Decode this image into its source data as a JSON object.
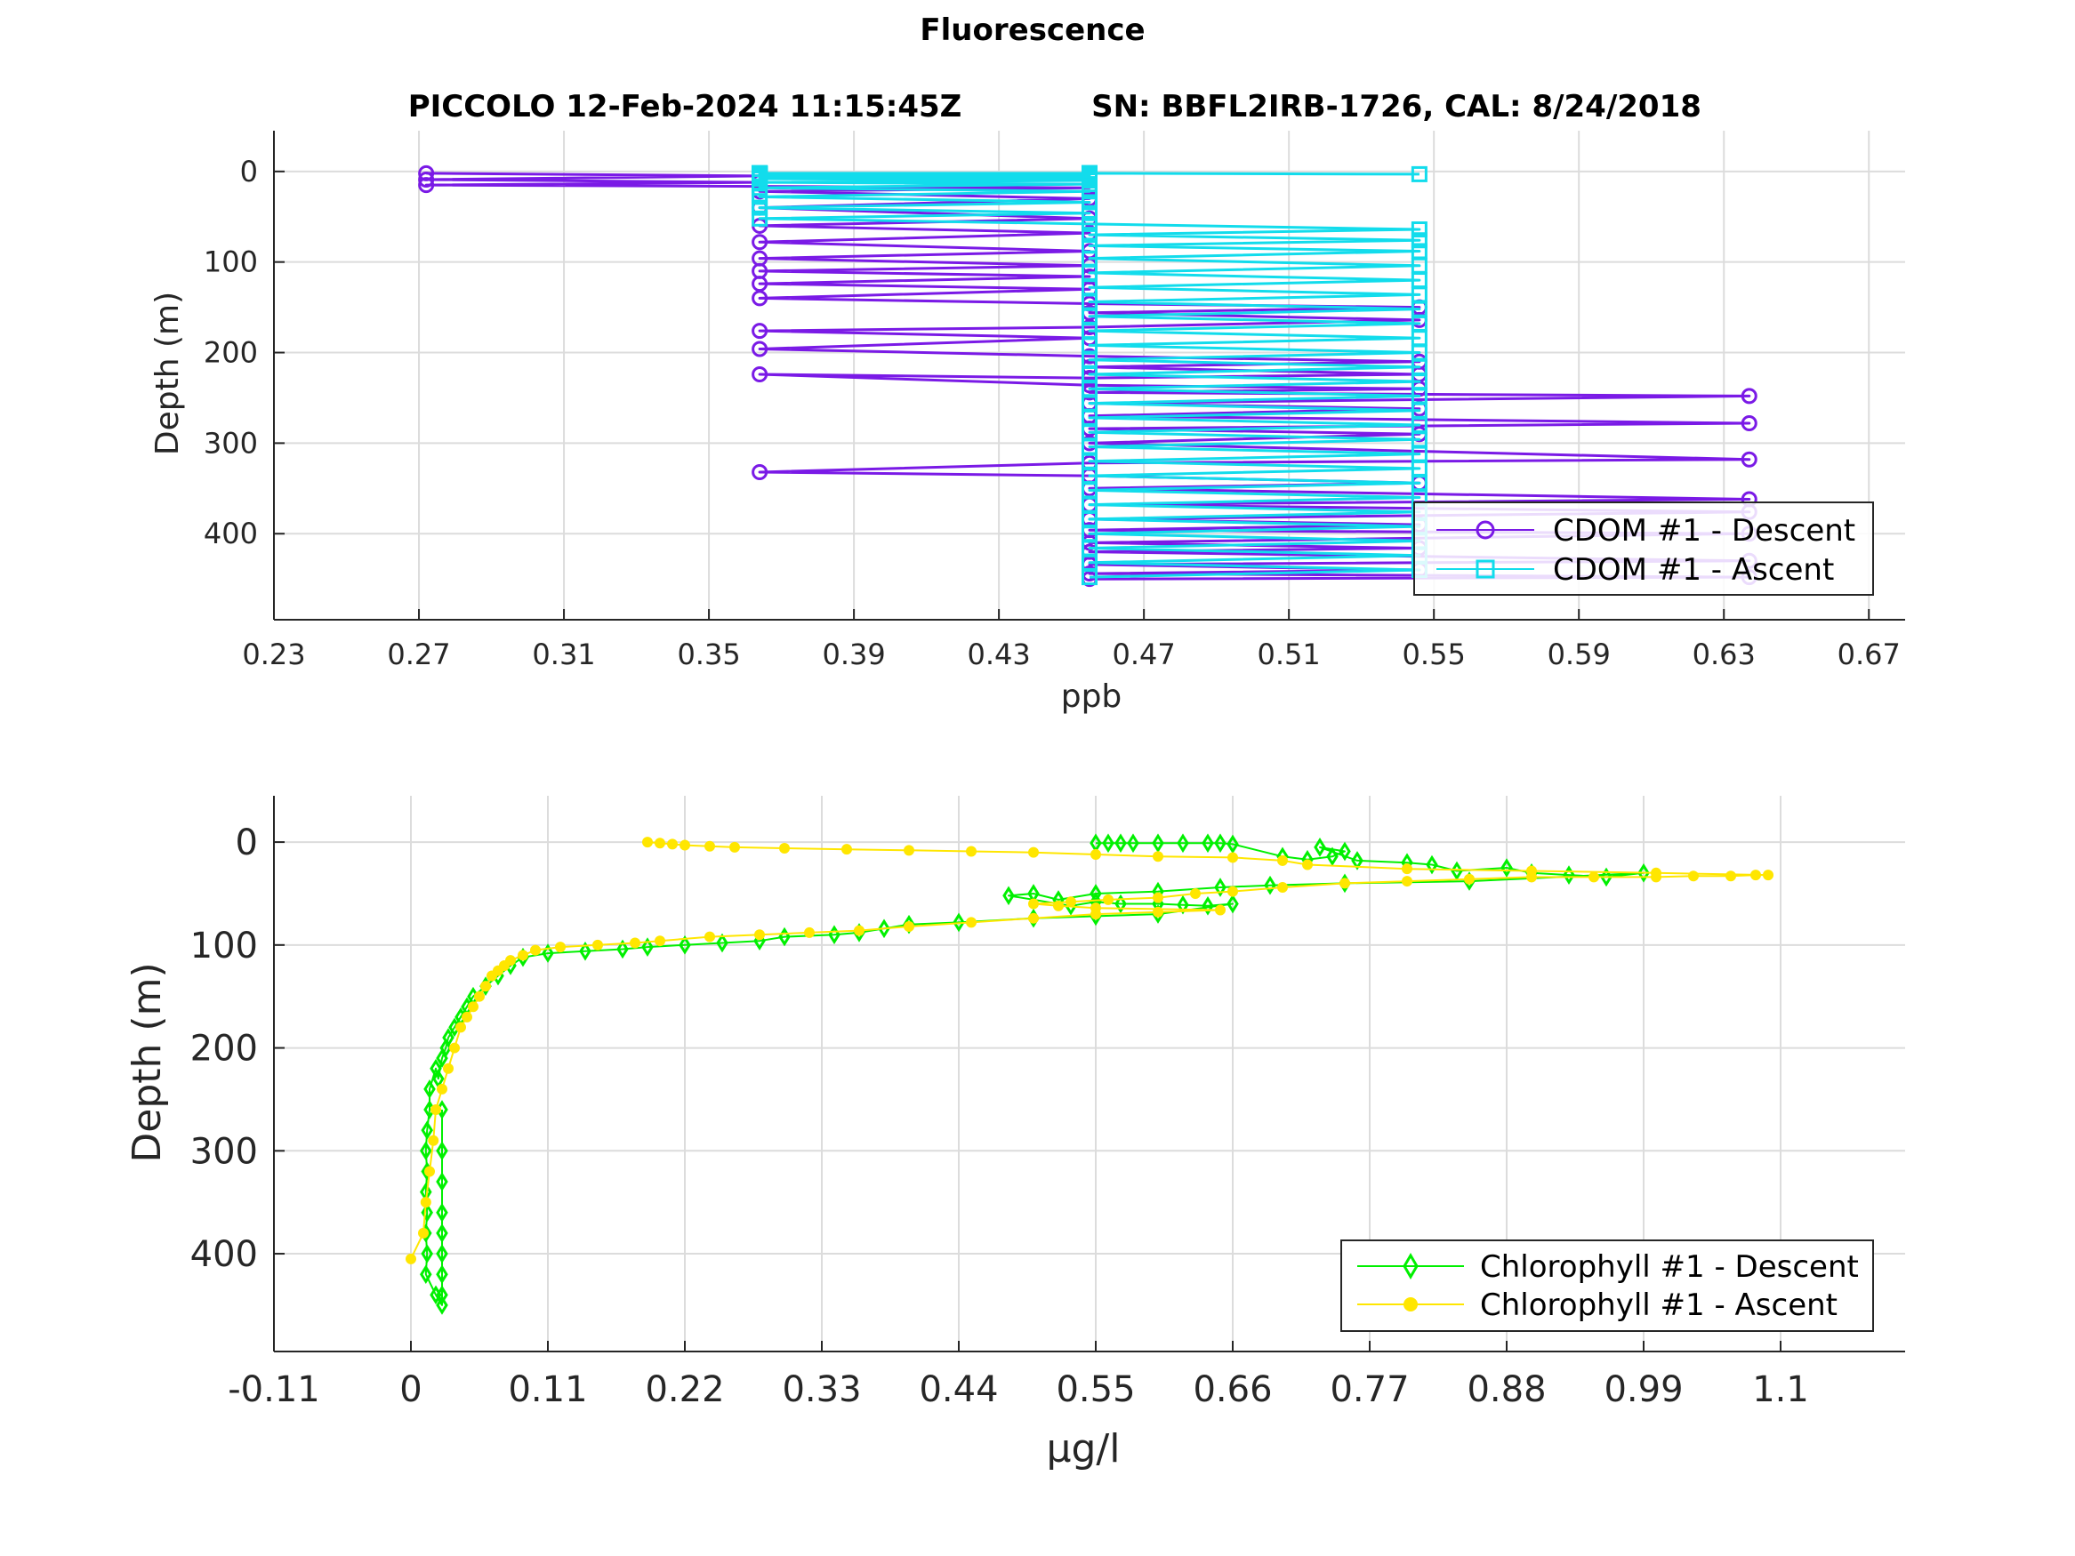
{
  "figure": {
    "title": "Fluorescence",
    "subtitle_left": "PICCOLO 12-Feb-2024 11:15:45Z",
    "subtitle_right": "SN: BBFL2IRB-1726, CAL: 8/24/2018"
  },
  "chart_data": [
    {
      "type": "line",
      "xlabel": "ppb",
      "ylabel": "Depth (m)",
      "xlim": [
        0.23,
        0.68
      ],
      "ylim": [
        -45,
        495
      ],
      "y_reversed": true,
      "grid": true,
      "legend_position": "bottom-right",
      "xticks": [
        "0.23",
        "0.27",
        "0.31",
        "0.35",
        "0.39",
        "0.43",
        "0.47",
        "0.51",
        "0.55",
        "0.59",
        "0.63",
        "0.67"
      ],
      "yticks": [
        "0",
        "100",
        "200",
        "300",
        "400"
      ],
      "series": [
        {
          "name": "CDOM #1 - Descent",
          "color": "#7a1ae6",
          "marker": "circle",
          "x": [
            0.272,
            0.364,
            0.272,
            0.364,
            0.272,
            0.455,
            0.364,
            0.455,
            0.364,
            0.455,
            0.364,
            0.455,
            0.364,
            0.455,
            0.364,
            0.455,
            0.364,
            0.455,
            0.364,
            0.455,
            0.364,
            0.455,
            0.546,
            0.455,
            0.546,
            0.455,
            0.364,
            0.455,
            0.364,
            0.455,
            0.546,
            0.455,
            0.546,
            0.455,
            0.364,
            0.455,
            0.546,
            0.455,
            0.637,
            0.455,
            0.546,
            0.455,
            0.637,
            0.455,
            0.546,
            0.455,
            0.637,
            0.455,
            0.364,
            0.455,
            0.546,
            0.455,
            0.637,
            0.455,
            0.637,
            0.455,
            0.546,
            0.455,
            0.637,
            0.455,
            0.546,
            0.455,
            0.637,
            0.455,
            0.546,
            0.455,
            0.637,
            0.455
          ],
          "y": [
            2,
            5,
            9,
            12,
            15,
            18,
            22,
            30,
            40,
            52,
            60,
            68,
            78,
            88,
            96,
            104,
            110,
            116,
            124,
            130,
            140,
            146,
            150,
            156,
            164,
            172,
            176,
            184,
            196,
            204,
            210,
            216,
            224,
            228,
            224,
            236,
            240,
            244,
            248,
            256,
            262,
            270,
            278,
            284,
            290,
            300,
            318,
            322,
            332,
            336,
            344,
            350,
            362,
            368,
            376,
            384,
            390,
            396,
            400,
            410,
            416,
            420,
            430,
            434,
            440,
            444,
            448,
            450
          ]
        },
        {
          "name": "CDOM #1 - Ascent",
          "color": "#12dcec",
          "marker": "square",
          "x": [
            0.455,
            0.546,
            0.455,
            0.546,
            0.455,
            0.546,
            0.455,
            0.546,
            0.455,
            0.546,
            0.455,
            0.546,
            0.455,
            0.546,
            0.455,
            0.546,
            0.455,
            0.546,
            0.455,
            0.546,
            0.455,
            0.546,
            0.455,
            0.546,
            0.455,
            0.546,
            0.455,
            0.546,
            0.455,
            0.546,
            0.455,
            0.546,
            0.455,
            0.546,
            0.455,
            0.546,
            0.455,
            0.546,
            0.455,
            0.546,
            0.455,
            0.546,
            0.455,
            0.546,
            0.455,
            0.546,
            0.455,
            0.546,
            0.455,
            0.546,
            0.455,
            0.364,
            0.455,
            0.364,
            0.455,
            0.364,
            0.455,
            0.364,
            0.455,
            0.364,
            0.455,
            0.364,
            0.455,
            0.364,
            0.455,
            0.364,
            0.455,
            0.364,
            0.455,
            0.364,
            0.455,
            0.364,
            0.455,
            0.364,
            0.455,
            0.364,
            0.455,
            0.364,
            0.455,
            0.364,
            0.455,
            0.364,
            0.455,
            0.364,
            0.455,
            0.546
          ],
          "y": [
            448,
            440,
            432,
            424,
            416,
            408,
            400,
            392,
            384,
            376,
            368,
            360,
            352,
            344,
            336,
            328,
            320,
            312,
            304,
            296,
            288,
            280,
            272,
            264,
            256,
            248,
            240,
            232,
            224,
            216,
            208,
            200,
            192,
            184,
            176,
            168,
            160,
            152,
            144,
            136,
            128,
            120,
            112,
            104,
            96,
            88,
            82,
            76,
            70,
            64,
            58,
            52,
            46,
            40,
            34,
            28,
            22,
            18,
            14,
            12,
            10,
            8,
            7,
            6,
            6,
            5,
            5,
            4,
            4,
            3,
            3,
            3,
            3,
            3,
            2,
            2,
            2,
            2,
            2,
            2,
            2,
            2,
            2,
            2,
            2,
            3
          ]
        }
      ]
    },
    {
      "type": "line",
      "xlabel": "μg/l",
      "ylabel": "Depth (m)",
      "xlim": [
        -0.11,
        1.2
      ],
      "ylim": [
        -45,
        495
      ],
      "y_reversed": true,
      "grid": true,
      "legend_position": "bottom-right",
      "xticks": [
        "-0.11",
        "0",
        "0.11",
        "0.22",
        "0.33",
        "0.44",
        "0.55",
        "0.66",
        "0.77",
        "0.88",
        "0.99",
        "1.1"
      ],
      "yticks": [
        "0",
        "100",
        "200",
        "300",
        "400"
      ],
      "series": [
        {
          "name": "Chlorophyll #1 - Descent",
          "color": "#00f000",
          "marker": "diamond",
          "x": [
            0.55,
            0.56,
            0.57,
            0.58,
            0.6,
            0.62,
            0.64,
            0.65,
            0.66,
            0.7,
            0.72,
            0.74,
            0.75,
            0.73,
            0.76,
            0.8,
            0.82,
            0.84,
            0.88,
            0.9,
            0.93,
            0.96,
            0.99,
            0.85,
            0.75,
            0.69,
            0.65,
            0.6,
            0.55,
            0.52,
            0.5,
            0.48,
            0.53,
            0.55,
            0.57,
            0.6,
            0.62,
            0.64,
            0.66,
            0.6,
            0.55,
            0.5,
            0.44,
            0.4,
            0.38,
            0.36,
            0.34,
            0.3,
            0.28,
            0.25,
            0.22,
            0.19,
            0.17,
            0.14,
            0.11,
            0.09,
            0.08,
            0.07,
            0.06,
            0.05,
            0.045,
            0.04,
            0.035,
            0.03,
            0.028,
            0.025,
            0.022,
            0.02,
            0.015,
            0.015,
            0.013,
            0.012,
            0.013,
            0.012,
            0.013,
            0.012,
            0.013,
            0.012,
            0.02,
            0.025,
            0.025,
            0.025,
            0.025,
            0.025,
            0.025,
            0.025,
            0.025,
            0.025
          ],
          "y": [
            1,
            1,
            1,
            1,
            1,
            1,
            1,
            1,
            2,
            14,
            17,
            14,
            9,
            5,
            18,
            20,
            22,
            28,
            25,
            30,
            32,
            34,
            30,
            38,
            40,
            42,
            44,
            48,
            50,
            56,
            50,
            52,
            62,
            58,
            60,
            60,
            61,
            62,
            60,
            70,
            72,
            74,
            78,
            80,
            84,
            88,
            90,
            92,
            96,
            98,
            100,
            102,
            104,
            106,
            108,
            112,
            120,
            130,
            140,
            150,
            160,
            170,
            180,
            190,
            200,
            210,
            230,
            220,
            240,
            260,
            280,
            300,
            320,
            340,
            360,
            380,
            400,
            420,
            440,
            450,
            440,
            420,
            400,
            380,
            360,
            330,
            300,
            260
          ]
        },
        {
          "name": "Chlorophyll #1 - Ascent",
          "color": "#ffe600",
          "marker": "asterisk",
          "x": [
            0.0,
            0.01,
            0.012,
            0.015,
            0.018,
            0.02,
            0.025,
            0.03,
            0.035,
            0.04,
            0.045,
            0.05,
            0.055,
            0.06,
            0.065,
            0.07,
            0.075,
            0.08,
            0.09,
            0.1,
            0.12,
            0.15,
            0.18,
            0.2,
            0.24,
            0.28,
            0.32,
            0.36,
            0.4,
            0.45,
            0.5,
            0.55,
            0.6,
            0.65,
            0.55,
            0.52,
            0.5,
            0.53,
            0.56,
            0.6,
            0.63,
            0.66,
            0.7,
            0.75,
            0.8,
            0.85,
            0.9,
            0.95,
            1.0,
            1.03,
            1.06,
            1.08,
            1.09,
            1.0,
            0.9,
            0.8,
            0.72,
            0.7,
            0.66,
            0.6,
            0.55,
            0.5,
            0.45,
            0.4,
            0.35,
            0.3,
            0.26,
            0.24,
            0.22,
            0.21,
            0.2,
            0.19
          ],
          "y": [
            405,
            380,
            350,
            320,
            290,
            260,
            240,
            220,
            200,
            180,
            170,
            160,
            150,
            140,
            130,
            125,
            120,
            115,
            110,
            105,
            102,
            100,
            98,
            96,
            92,
            90,
            88,
            86,
            82,
            78,
            74,
            70,
            68,
            66,
            64,
            62,
            60,
            58,
            56,
            54,
            50,
            48,
            44,
            40,
            38,
            36,
            34,
            34,
            34,
            33,
            33,
            32,
            32,
            30,
            28,
            26,
            22,
            18,
            15,
            14,
            12,
            10,
            9,
            8,
            7,
            6,
            5,
            4,
            3,
            2,
            1,
            0
          ]
        }
      ]
    }
  ]
}
